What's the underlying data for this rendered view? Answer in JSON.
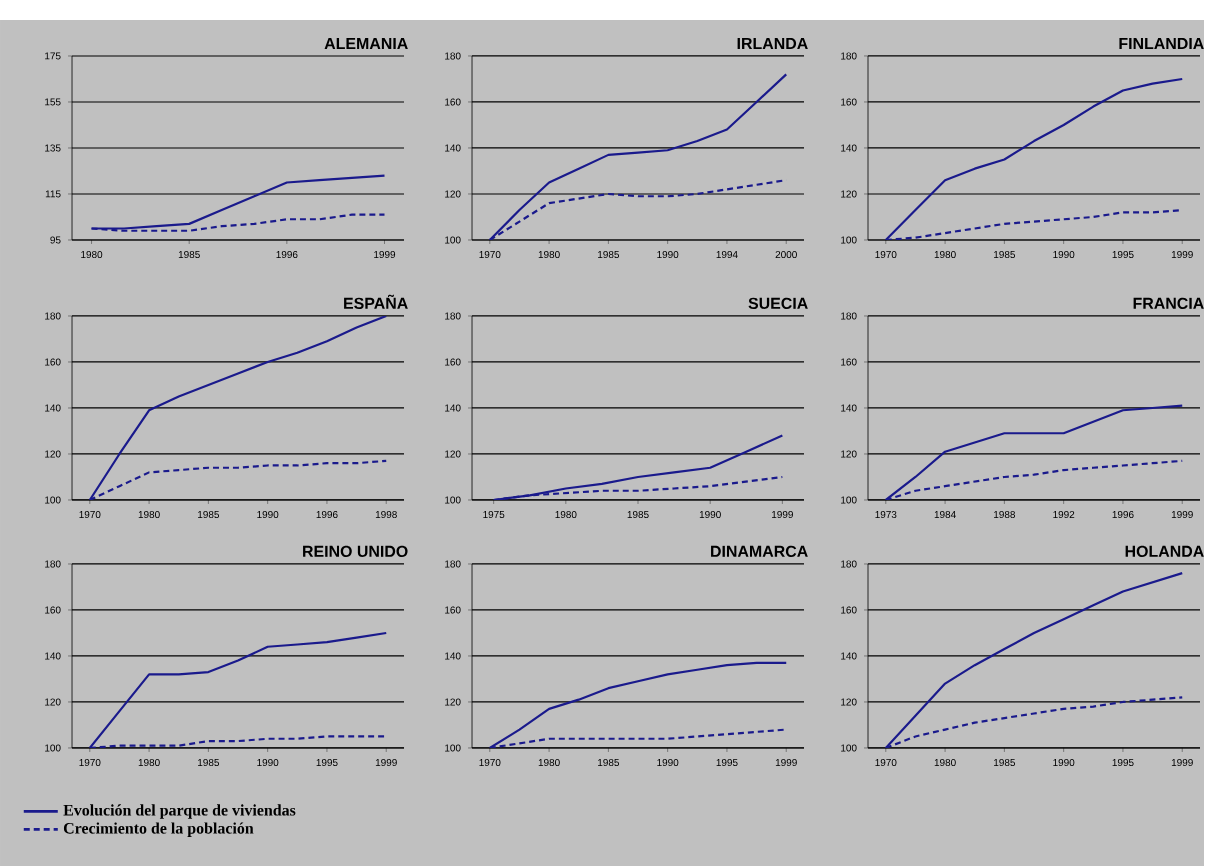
{
  "chart_data": [
    {
      "type": "line",
      "title": "ALEMANIA",
      "legend": "bottom",
      "grid": "y",
      "ylim": [
        95,
        175
      ],
      "yticks": [
        95,
        115,
        135,
        155,
        175
      ],
      "categories": [
        "1980",
        null,
        null,
        "1985",
        null,
        null,
        "1996",
        null,
        null,
        "1999"
      ],
      "series": [
        {
          "name": "Evolución del parque de viviendas",
          "color": "#1a1a8c",
          "line_style": "solid",
          "values": [
            100,
            100,
            101,
            102,
            108,
            114,
            120,
            121,
            122,
            123
          ]
        },
        {
          "name": "Crecimiento de la población",
          "color": "#1a1a8c",
          "line_style": "dashed",
          "values": [
            100,
            99,
            99,
            99,
            101,
            102,
            104,
            104,
            106,
            106
          ]
        }
      ]
    },
    {
      "type": "line",
      "title": "IRLANDA",
      "grid": "y",
      "ylim": [
        100,
        180
      ],
      "yticks": [
        100,
        120,
        140,
        160,
        180
      ],
      "categories": [
        "1970",
        null,
        "1980",
        null,
        "1985",
        null,
        "1990",
        null,
        "1994",
        null,
        "2000"
      ],
      "series": [
        {
          "color": "#1a1a8c",
          "line_style": "solid",
          "values": [
            100,
            113,
            125,
            131,
            137,
            138,
            139,
            143,
            148,
            160,
            172
          ]
        },
        {
          "color": "#1a1a8c",
          "line_style": "dashed",
          "values": [
            100,
            108,
            116,
            118,
            120,
            119,
            119,
            120,
            122,
            124,
            126
          ]
        }
      ]
    },
    {
      "type": "line",
      "title": "FINLANDIA",
      "grid": "y",
      "ylim": [
        100,
        180
      ],
      "yticks": [
        100,
        120,
        140,
        160,
        180
      ],
      "categories": [
        "1970",
        null,
        "1980",
        null,
        "1985",
        null,
        "1990",
        null,
        "1995",
        null,
        "1999"
      ],
      "series": [
        {
          "color": "#1a1a8c",
          "line_style": "solid",
          "values": [
            100,
            113,
            126,
            131,
            135,
            143,
            150,
            158,
            165,
            168,
            170
          ]
        },
        {
          "color": "#1a1a8c",
          "line_style": "dashed",
          "values": [
            100,
            101,
            103,
            105,
            107,
            108,
            109,
            110,
            112,
            112,
            113
          ]
        }
      ]
    },
    {
      "type": "line",
      "title": "ESPAÑA",
      "grid": "y",
      "ylim": [
        100,
        180
      ],
      "yticks": [
        100,
        120,
        140,
        160,
        180
      ],
      "categories": [
        "1970",
        null,
        "1980",
        null,
        "1985",
        null,
        "1990",
        null,
        "1996",
        null,
        "1998"
      ],
      "series": [
        {
          "color": "#1a1a8c",
          "line_style": "solid",
          "values": [
            100,
            120,
            139,
            145,
            150,
            155,
            160,
            164,
            169,
            175,
            180
          ]
        },
        {
          "color": "#1a1a8c",
          "line_style": "dashed",
          "values": [
            100,
            106,
            112,
            113,
            114,
            114,
            115,
            115,
            116,
            116,
            117
          ]
        }
      ]
    },
    {
      "type": "line",
      "title": "SUECIA",
      "grid": "y",
      "ylim": [
        100,
        180
      ],
      "yticks": [
        100,
        120,
        140,
        160,
        180
      ],
      "categories": [
        "1975",
        null,
        "1980",
        null,
        "1985",
        null,
        "1990",
        null,
        "1999"
      ],
      "series": [
        {
          "color": "#1a1a8c",
          "line_style": "solid",
          "values": [
            100,
            102,
            105,
            107,
            110,
            112,
            114,
            121,
            128
          ]
        },
        {
          "color": "#1a1a8c",
          "line_style": "dashed",
          "values": [
            100,
            102,
            103,
            104,
            104,
            105,
            106,
            108,
            110
          ]
        }
      ]
    },
    {
      "type": "line",
      "title": "FRANCIA",
      "grid": "y",
      "ylim": [
        100,
        180
      ],
      "yticks": [
        100,
        120,
        140,
        160,
        180
      ],
      "categories": [
        "1973",
        null,
        "1984",
        null,
        "1988",
        null,
        "1992",
        null,
        "1996",
        null,
        "1999"
      ],
      "series": [
        {
          "color": "#1a1a8c",
          "line_style": "solid",
          "values": [
            100,
            110,
            121,
            125,
            129,
            129,
            129,
            134,
            139,
            140,
            141
          ]
        },
        {
          "color": "#1a1a8c",
          "line_style": "dashed",
          "values": [
            100,
            104,
            106,
            108,
            110,
            111,
            113,
            114,
            115,
            116,
            117
          ]
        }
      ]
    },
    {
      "type": "line",
      "title": "REINO UNIDO",
      "grid": "y",
      "ylim": [
        100,
        180
      ],
      "yticks": [
        100,
        120,
        140,
        160,
        180
      ],
      "categories": [
        "1970",
        null,
        "1980",
        null,
        "1985",
        null,
        "1990",
        null,
        "1995",
        null,
        "1999"
      ],
      "series": [
        {
          "color": "#1a1a8c",
          "line_style": "solid",
          "values": [
            100,
            116,
            132,
            132,
            133,
            138,
            144,
            145,
            146,
            148,
            150
          ]
        },
        {
          "color": "#1a1a8c",
          "line_style": "dashed",
          "values": [
            100,
            101,
            101,
            101,
            103,
            103,
            104,
            104,
            105,
            105,
            105
          ]
        }
      ]
    },
    {
      "type": "line",
      "title": "DINAMARCA",
      "grid": "y",
      "ylim": [
        100,
        180
      ],
      "yticks": [
        100,
        120,
        140,
        160,
        180
      ],
      "categories": [
        "1970",
        null,
        "1980",
        null,
        "1985",
        null,
        "1990",
        null,
        "1995",
        null,
        "1999"
      ],
      "series": [
        {
          "color": "#1a1a8c",
          "line_style": "solid",
          "values": [
            100,
            108,
            117,
            121,
            126,
            129,
            132,
            134,
            136,
            137,
            137
          ]
        },
        {
          "color": "#1a1a8c",
          "line_style": "dashed",
          "values": [
            100,
            102,
            104,
            104,
            104,
            104,
            104,
            105,
            106,
            107,
            108
          ]
        }
      ]
    },
    {
      "type": "line",
      "title": "HOLANDA",
      "grid": "y",
      "ylim": [
        100,
        180
      ],
      "yticks": [
        100,
        120,
        140,
        160,
        180
      ],
      "categories": [
        "1970",
        null,
        "1980",
        null,
        "1985",
        null,
        "1990",
        null,
        "1995",
        null,
        "1999"
      ],
      "series": [
        {
          "color": "#1a1a8c",
          "line_style": "solid",
          "values": [
            100,
            114,
            128,
            136,
            143,
            150,
            156,
            162,
            168,
            172,
            176
          ]
        },
        {
          "color": "#1a1a8c",
          "line_style": "dashed",
          "values": [
            100,
            105,
            108,
            111,
            113,
            115,
            117,
            118,
            120,
            121,
            122
          ]
        }
      ]
    }
  ]
}
